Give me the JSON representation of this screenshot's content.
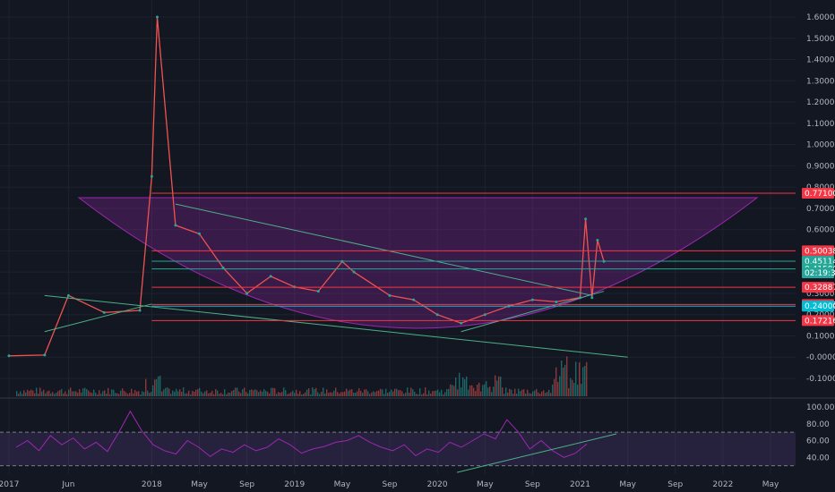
{
  "chart_data": [
    {
      "type": "line",
      "log_scale": true,
      "ylim": [
        -0.1,
        1.6
      ],
      "y_ticks": [
        "1.60000",
        "1.50000",
        "1.40000",
        "1.30000",
        "1.20000",
        "1.10000",
        "1.00000",
        "0.90000",
        "0.80000",
        "0.70000",
        "0.60000",
        "0.50000",
        "0.40000",
        "0.30000",
        "0.20000",
        "0.10000",
        "-0.00000",
        "-0.10000"
      ],
      "x_ticks": [
        "2017",
        "Jun",
        "2018",
        "May",
        "Sep",
        "2019",
        "May",
        "Sep",
        "2020",
        "May",
        "Sep",
        "2021",
        "May",
        "Sep",
        "2022",
        "May"
      ],
      "grid": true,
      "price_series": {
        "name": "",
        "x": [
          "2017-01",
          "2017-04",
          "2017-06",
          "2017-09",
          "2017-12",
          "2018-01",
          "2018-01-15",
          "2018-03",
          "2018-05",
          "2018-07",
          "2018-09",
          "2018-11",
          "2019-01",
          "2019-03",
          "2019-05",
          "2019-06",
          "2019-09",
          "2019-11",
          "2020-01",
          "2020-03",
          "2020-05",
          "2020-07",
          "2020-09",
          "2020-11",
          "2021-01",
          "2021-01-15",
          "2021-02",
          "2021-02-15",
          "2021-03"
        ],
        "y": [
          0.006,
          0.01,
          0.29,
          0.21,
          0.22,
          0.85,
          1.6,
          0.62,
          0.58,
          0.42,
          0.3,
          0.38,
          0.33,
          0.31,
          0.45,
          0.4,
          0.29,
          0.27,
          0.2,
          0.16,
          0.2,
          0.24,
          0.27,
          0.26,
          0.28,
          0.65,
          0.28,
          0.55,
          0.45
        ]
      },
      "level_lines": [
        {
          "value": 0.771,
          "label": "0.77100",
          "color": "#f23645"
        },
        {
          "value": 0.50038,
          "label": "0.50038",
          "color": "#f23645"
        },
        {
          "value": 0.45114,
          "label": "0.45114",
          "color": "#26a69a"
        },
        {
          "value": 0.415,
          "label": "0.41500",
          "color": "#22ab94"
        },
        {
          "value": 0.32887,
          "label": "0.32887",
          "color": "#f23645"
        },
        {
          "value": 0.24758,
          "label": "0.24758",
          "color": "#f23645"
        },
        {
          "value": 0.24,
          "label": "0.24000",
          "color": "#00bcd4"
        },
        {
          "value": 0.17216,
          "label": "0.17216",
          "color": "#f23645"
        }
      ],
      "countdown_label": "02:19:36",
      "annotations": [
        "cup pattern (purple arc)",
        "descending trendlines (green)"
      ]
    },
    {
      "type": "line",
      "ylim": [
        20,
        100
      ],
      "y_ticks": [
        "100.00",
        "80.00",
        "60.00",
        "40.00"
      ],
      "bands": [
        30,
        70
      ],
      "series": [
        {
          "name": "",
          "color": "#9c27b0",
          "values": [
            52,
            60,
            48,
            66,
            55,
            63,
            50,
            58,
            47,
            70,
            95,
            72,
            55,
            48,
            44,
            60,
            52,
            41,
            50,
            46,
            55,
            48,
            52,
            62,
            55,
            45,
            50,
            53,
            58,
            60,
            66,
            58,
            52,
            48,
            55,
            42,
            50,
            46,
            58,
            52,
            60,
            68,
            62,
            85,
            70,
            50,
            60,
            48,
            40,
            45,
            56
          ]
        }
      ]
    }
  ]
}
